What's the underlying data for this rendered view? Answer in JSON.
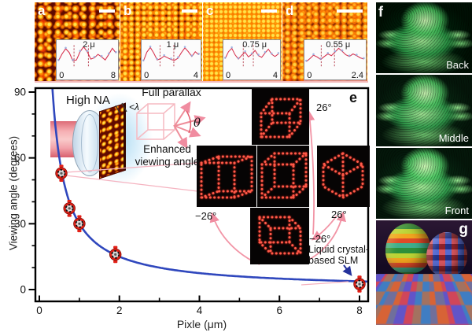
{
  "top_panels": [
    {
      "letter": "a"
    },
    {
      "letter": "b"
    },
    {
      "letter": "c"
    },
    {
      "letter": "d"
    }
  ],
  "right_panels": {
    "letter_f": "f",
    "letter_g": "g",
    "depth_labels": [
      "Back",
      "Middle",
      "Front"
    ]
  },
  "annotations": {
    "high_na": "High NA",
    "full_parallax": "Full parallax",
    "enhanced_line1": "Enhanced",
    "enhanced_line2": "viewing angle",
    "lambda": "<λ",
    "theta": "θ",
    "panel_e_letter": "e",
    "angle_top": "26°",
    "angle_left": "−26°",
    "angle_right": "26°",
    "angle_bottom": "−26°",
    "slm_line1": "Liquid crystal-",
    "slm_line2": "based SLM"
  },
  "colors": {
    "curve_blue": "#2f47bd",
    "point_red": "#e32017",
    "arrow_pink": "#f295a6",
    "cube_red": "#ff5a49"
  },
  "chart_data": [
    {
      "id": "viewing-angle-vs-pixel-size",
      "type": "scatter",
      "xlabel": "Pixle (μm)",
      "ylabel": "Viewing angle (degrees)",
      "xlim": [
        0,
        8.35
      ],
      "ylim": [
        -5.3,
        90
      ],
      "xticks": [
        0,
        2,
        4,
        6,
        8
      ],
      "yticks": [
        0,
        30,
        60,
        90
      ],
      "x_minor": 1,
      "y_minor": 10,
      "grid": false,
      "points": [
        {
          "x": 0.55,
          "y": 53
        },
        {
          "x": 0.75,
          "y": 37
        },
        {
          "x": 1.0,
          "y": 30
        },
        {
          "x": 1.9,
          "y": 16
        },
        {
          "x": 8.0,
          "y": 2.5
        }
      ],
      "curve": {
        "model": "y = k / x",
        "k": 30,
        "y_max": 96,
        "x_start": 0.31,
        "x_end": 8.35
      },
      "curve_color": "#2f47bd",
      "point_color": "#e32017"
    },
    {
      "id": "panel-a-intensity-profile",
      "type": "line",
      "title": "2 μ",
      "x_first": "0",
      "x_last": "8",
      "profile": [
        0.3,
        0.62,
        0.86,
        0.68,
        0.3,
        0.34,
        0.72,
        0.95,
        0.72,
        0.38,
        0.44,
        0.6,
        0.48,
        0.34,
        0.6,
        0.88,
        0.66
      ],
      "marker_lines": [
        0.27,
        0.52
      ]
    },
    {
      "id": "panel-b-intensity-profile",
      "type": "line",
      "title": "1 μ",
      "x_first": "0",
      "x_last": "4",
      "profile": [
        0.28,
        0.7,
        0.92,
        0.66,
        0.34,
        0.4,
        0.52,
        0.44,
        0.36,
        0.32,
        0.42,
        0.68,
        0.9,
        0.72,
        0.5,
        0.72,
        0.58
      ],
      "marker_lines": [
        0.3,
        0.55
      ]
    },
    {
      "id": "panel-c-intensity-profile",
      "type": "line",
      "title": "0.75 μ",
      "x_first": "0",
      "x_last": "4",
      "profile": [
        0.4,
        0.72,
        0.88,
        0.58,
        0.38,
        0.56,
        0.7,
        0.48,
        0.6,
        0.78,
        0.54,
        0.46,
        0.66,
        0.84,
        0.6,
        0.5,
        0.62
      ],
      "marker_lines": [
        0.34,
        0.53
      ]
    },
    {
      "id": "panel-d-intensity-profile",
      "type": "line",
      "title": "0.55 μ",
      "x_first": "0",
      "x_last": "2.4",
      "profile": [
        0.26,
        0.4,
        0.56,
        0.48,
        0.36,
        0.5,
        0.62,
        0.54,
        0.7,
        0.88,
        0.74,
        0.58,
        0.5,
        0.62,
        0.54,
        0.44,
        0.38
      ],
      "marker_lines": [
        0.26,
        0.49
      ]
    }
  ]
}
